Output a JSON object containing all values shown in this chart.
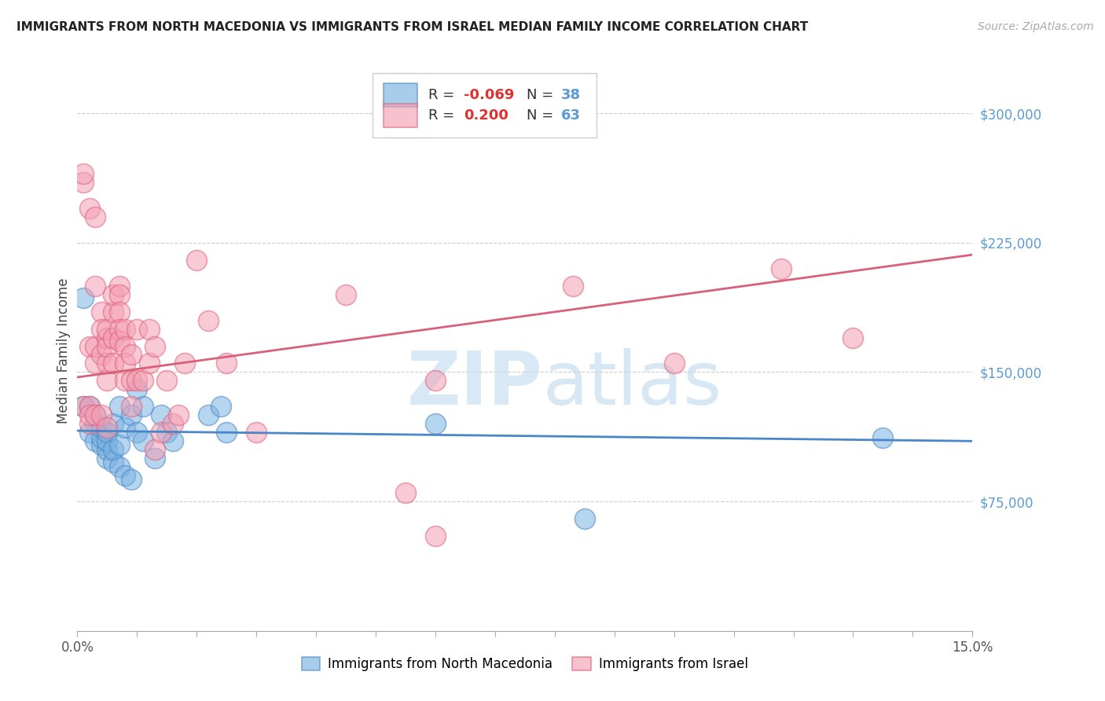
{
  "title": "IMMIGRANTS FROM NORTH MACEDONIA VS IMMIGRANTS FROM ISRAEL MEDIAN FAMILY INCOME CORRELATION CHART",
  "source": "Source: ZipAtlas.com",
  "ylabel": "Median Family Income",
  "xlim": [
    0.0,
    0.15
  ],
  "ylim": [
    0,
    325000
  ],
  "yticks": [
    0,
    75000,
    150000,
    225000,
    300000
  ],
  "background_color": "#ffffff",
  "blue_color": "#7ab3e0",
  "pink_color": "#f4a0b5",
  "blue_edge_color": "#4a86c8",
  "pink_edge_color": "#e0607a",
  "blue_line_color": "#4a86c8",
  "pink_line_color": "#d9607a",
  "watermark_color": "#c8dff0",
  "tick_label_color": "#5b9bd5",
  "scatter_blue_x": [
    0.001,
    0.001,
    0.002,
    0.002,
    0.003,
    0.003,
    0.003,
    0.004,
    0.004,
    0.004,
    0.005,
    0.005,
    0.005,
    0.005,
    0.006,
    0.006,
    0.006,
    0.007,
    0.007,
    0.007,
    0.008,
    0.008,
    0.009,
    0.009,
    0.01,
    0.01,
    0.011,
    0.011,
    0.013,
    0.014,
    0.015,
    0.016,
    0.022,
    0.024,
    0.025,
    0.06,
    0.085,
    0.135
  ],
  "scatter_blue_y": [
    193000,
    130000,
    115000,
    130000,
    110000,
    120000,
    125000,
    108000,
    112000,
    118000,
    100000,
    105000,
    110000,
    115000,
    98000,
    105000,
    120000,
    95000,
    108000,
    130000,
    90000,
    118000,
    88000,
    125000,
    140000,
    115000,
    110000,
    130000,
    100000,
    125000,
    115000,
    110000,
    125000,
    130000,
    115000,
    120000,
    65000,
    112000
  ],
  "scatter_pink_x": [
    0.001,
    0.001,
    0.001,
    0.002,
    0.002,
    0.002,
    0.002,
    0.002,
    0.003,
    0.003,
    0.003,
    0.003,
    0.003,
    0.004,
    0.004,
    0.004,
    0.004,
    0.005,
    0.005,
    0.005,
    0.005,
    0.005,
    0.005,
    0.006,
    0.006,
    0.006,
    0.006,
    0.007,
    0.007,
    0.007,
    0.007,
    0.007,
    0.008,
    0.008,
    0.008,
    0.008,
    0.009,
    0.009,
    0.009,
    0.01,
    0.01,
    0.011,
    0.012,
    0.012,
    0.013,
    0.013,
    0.014,
    0.015,
    0.016,
    0.017,
    0.018,
    0.02,
    0.022,
    0.025,
    0.03,
    0.045,
    0.055,
    0.06,
    0.083,
    0.1,
    0.118,
    0.13,
    0.06
  ],
  "scatter_pink_y": [
    260000,
    265000,
    130000,
    120000,
    130000,
    245000,
    165000,
    125000,
    240000,
    125000,
    155000,
    165000,
    200000,
    185000,
    160000,
    175000,
    125000,
    170000,
    155000,
    145000,
    165000,
    175000,
    118000,
    185000,
    195000,
    170000,
    155000,
    200000,
    195000,
    185000,
    175000,
    168000,
    175000,
    165000,
    155000,
    145000,
    160000,
    145000,
    130000,
    175000,
    145000,
    145000,
    155000,
    175000,
    165000,
    105000,
    115000,
    145000,
    120000,
    125000,
    155000,
    215000,
    180000,
    155000,
    115000,
    195000,
    80000,
    145000,
    200000,
    155000,
    210000,
    170000,
    55000
  ],
  "blue_trend_x": [
    0.0,
    0.15
  ],
  "blue_trend_y": [
    116000,
    110000
  ],
  "pink_trend_x": [
    0.0,
    0.15
  ],
  "pink_trend_y": [
    147000,
    218000
  ]
}
